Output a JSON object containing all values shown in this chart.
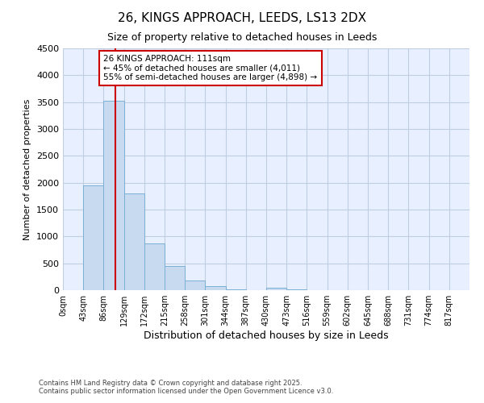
{
  "title1": "26, KINGS APPROACH, LEEDS, LS13 2DX",
  "title2": "Size of property relative to detached houses in Leeds",
  "xlabel": "Distribution of detached houses by size in Leeds",
  "ylabel": "Number of detached properties",
  "annotation_line1": "26 KINGS APPROACH: 111sqm",
  "annotation_line2": "← 45% of detached houses are smaller (4,011)",
  "annotation_line3": "55% of semi-detached houses are larger (4,898) →",
  "footer1": "Contains HM Land Registry data © Crown copyright and database right 2025.",
  "footer2": "Contains public sector information licensed under the Open Government Licence v3.0.",
  "bin_edges": [
    0,
    43,
    86,
    129,
    172,
    215,
    258,
    301,
    344,
    387,
    430,
    473,
    516,
    559,
    602,
    645,
    688,
    731,
    774,
    817,
    860
  ],
  "bar_heights": [
    5,
    1950,
    3520,
    1800,
    870,
    450,
    175,
    80,
    20,
    5,
    40,
    10,
    5,
    3,
    2,
    2,
    2,
    2,
    2,
    2
  ],
  "bar_color": "#c8daf0",
  "bar_edge_color": "#7bafd4",
  "property_size": 111,
  "vline_color": "#cc0000",
  "ylim": [
    0,
    4500
  ],
  "yticks": [
    0,
    500,
    1000,
    1500,
    2000,
    2500,
    3000,
    3500,
    4000,
    4500
  ],
  "plot_bg_color": "#e8f0ff",
  "fig_bg_color": "#ffffff",
  "grid_color": "#c0cce0",
  "annotation_box_edge_color": "#cc0000",
  "annotation_box_fill": "#ffffff"
}
